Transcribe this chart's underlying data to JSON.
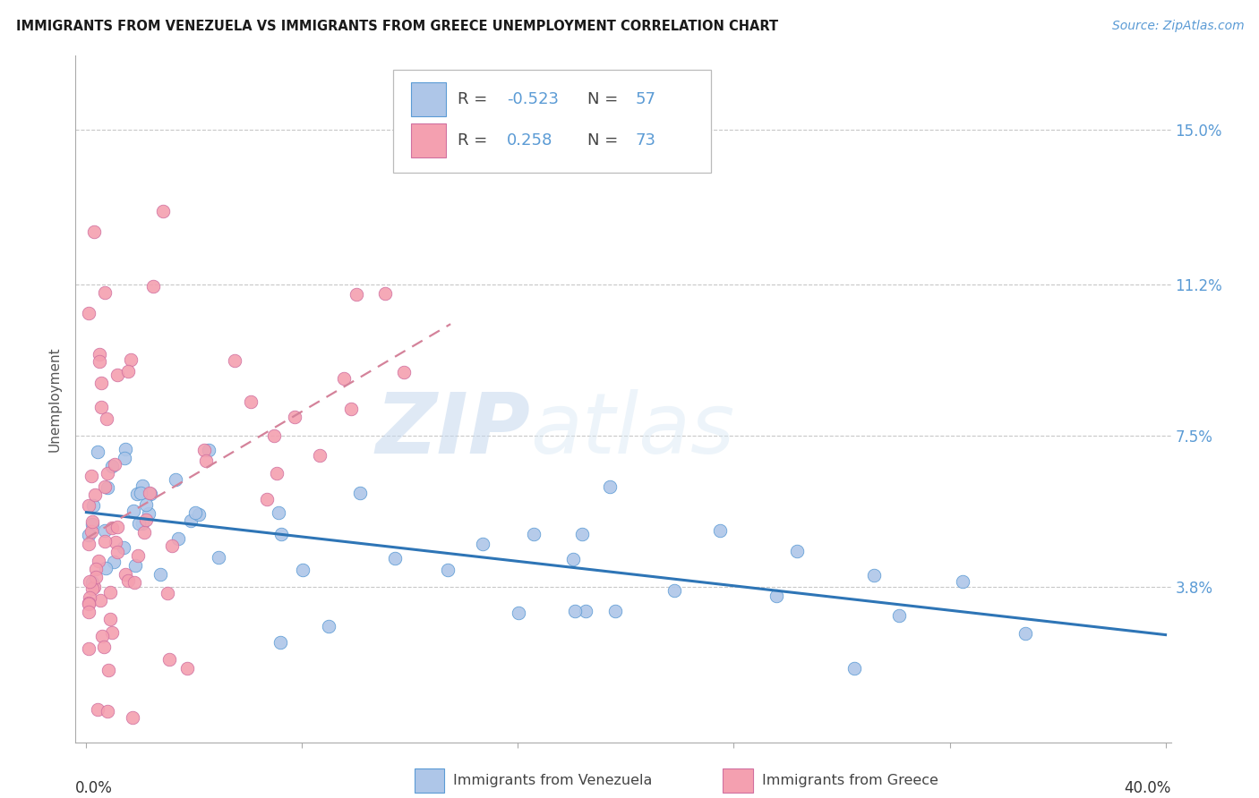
{
  "title": "IMMIGRANTS FROM VENEZUELA VS IMMIGRANTS FROM GREECE UNEMPLOYMENT CORRELATION CHART",
  "source": "Source: ZipAtlas.com",
  "ylabel": "Unemployment",
  "yticks": [
    0.038,
    0.075,
    0.112,
    0.15
  ],
  "ytick_labels": [
    "3.8%",
    "7.5%",
    "11.2%",
    "15.0%"
  ],
  "xlim": [
    0.0,
    0.4
  ],
  "ylim": [
    0.0,
    0.168
  ],
  "watermark_zip": "ZIP",
  "watermark_atlas": "atlas",
  "venezuela_color": "#aec6e8",
  "venezuela_edge": "#5b9bd5",
  "greece_color": "#f4a0b0",
  "greece_edge": "#d070a0",
  "venezuela_line_color": "#2e75b6",
  "greece_line_color": "#d4829a",
  "title_fontsize": 10.5,
  "source_fontsize": 10,
  "tick_label_fontsize": 12,
  "ylabel_fontsize": 11,
  "legend_fontsize": 13
}
